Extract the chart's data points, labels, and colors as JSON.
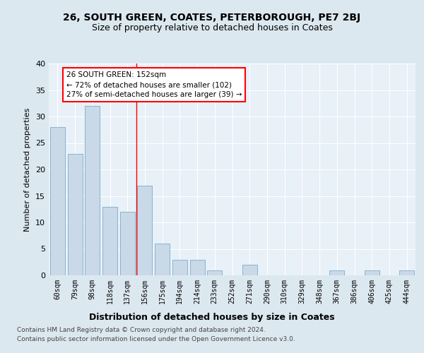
{
  "title1": "26, SOUTH GREEN, COATES, PETERBOROUGH, PE7 2BJ",
  "title2": "Size of property relative to detached houses in Coates",
  "xlabel": "Distribution of detached houses by size in Coates",
  "ylabel": "Number of detached properties",
  "categories": [
    "60sqm",
    "79sqm",
    "98sqm",
    "118sqm",
    "137sqm",
    "156sqm",
    "175sqm",
    "194sqm",
    "214sqm",
    "233sqm",
    "252sqm",
    "271sqm",
    "290sqm",
    "310sqm",
    "329sqm",
    "348sqm",
    "367sqm",
    "386sqm",
    "406sqm",
    "425sqm",
    "444sqm"
  ],
  "values": [
    28,
    23,
    32,
    13,
    12,
    17,
    6,
    3,
    3,
    1,
    0,
    2,
    0,
    0,
    0,
    0,
    1,
    0,
    1,
    0,
    1
  ],
  "bar_color": "#c9d9e8",
  "bar_edge_color": "#8ab4cc",
  "red_line_index": 5,
  "annotation_text1": "26 SOUTH GREEN: 152sqm",
  "annotation_text2": "← 72% of detached houses are smaller (102)",
  "annotation_text3": "27% of semi-detached houses are larger (39) →",
  "ylim": [
    0,
    40
  ],
  "yticks": [
    0,
    5,
    10,
    15,
    20,
    25,
    30,
    35,
    40
  ],
  "footer1": "Contains HM Land Registry data © Crown copyright and database right 2024.",
  "footer2": "Contains public sector information licensed under the Open Government Licence v3.0.",
  "bg_color": "#dce8f0",
  "plot_bg_color": "#e8f0f8"
}
